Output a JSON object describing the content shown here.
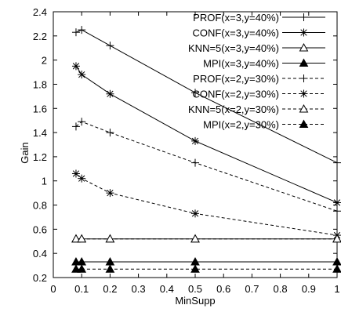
{
  "chart_data": {
    "type": "line",
    "xlabel": "MinSupp",
    "ylabel": "Gain",
    "xlim": [
      0,
      1
    ],
    "ylim": [
      0.2,
      2.4
    ],
    "xticks": [
      0,
      0.1,
      0.2,
      0.3,
      0.4,
      0.5,
      0.6,
      0.7,
      0.8,
      0.9,
      1
    ],
    "xtick_labels": [
      "0",
      "0.1",
      "0.2",
      "0.3",
      "0.4",
      "0.5",
      "0.6",
      "0.7",
      "0.8",
      "0.9",
      "1"
    ],
    "yticks": [
      0.2,
      0.4,
      0.6,
      0.8,
      1,
      1.2,
      1.4,
      1.6,
      1.8,
      2,
      2.2,
      2.4
    ],
    "ytick_labels": [
      "0.2",
      "0.4",
      "0.6",
      "0.8",
      "1",
      "1.2",
      "1.4",
      "1.6",
      "1.8",
      "2",
      "2.2",
      "2.4"
    ],
    "grid": false,
    "legend_position": "top-right",
    "x": [
      0.08,
      0.1,
      0.2,
      0.5,
      1
    ],
    "series": [
      {
        "name": "PROF(x=3,y=40%)",
        "marker": "plus",
        "dash": "solid",
        "values": [
          2.23,
          2.25,
          2.12,
          1.73,
          1.15
        ]
      },
      {
        "name": "CONF(x=3,y=40%)",
        "marker": "star",
        "dash": "solid",
        "values": [
          1.95,
          1.88,
          1.72,
          1.33,
          0.82
        ]
      },
      {
        "name": "KNN=5(x=3,y=40%)",
        "marker": "triangle-open",
        "dash": "solid",
        "values": [
          0.52,
          0.52,
          0.52,
          0.52,
          0.52
        ]
      },
      {
        "name": "MPI(x=3,y=40%)",
        "marker": "triangle-filled",
        "dash": "solid",
        "values": [
          0.33,
          0.33,
          0.33,
          0.33,
          0.33
        ]
      },
      {
        "name": "PROF(x=2,y=30%)",
        "marker": "plus",
        "dash": "dashed",
        "values": [
          1.45,
          1.49,
          1.4,
          1.15,
          0.75
        ]
      },
      {
        "name": "CONF(x=2,y=30%)",
        "marker": "star",
        "dash": "dashed",
        "values": [
          1.06,
          1.02,
          0.9,
          0.73,
          0.55
        ]
      },
      {
        "name": "KNN=5(x=2,y=30%)",
        "marker": "triangle-open",
        "dash": "dashed",
        "values": [
          0.52,
          0.52,
          0.52,
          0.52,
          0.52
        ]
      },
      {
        "name": "MPI(x=2,y=30%)",
        "marker": "triangle-filled",
        "dash": "dashed",
        "values": [
          0.27,
          0.27,
          0.27,
          0.27,
          0.27
        ]
      }
    ]
  }
}
